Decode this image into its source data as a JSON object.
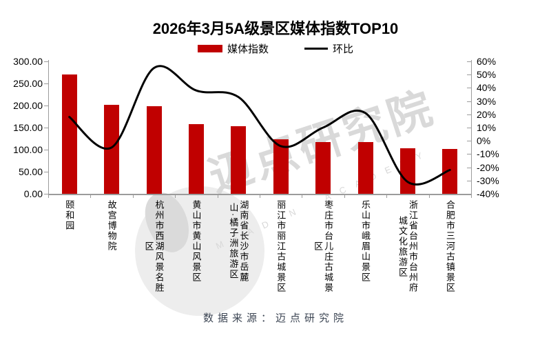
{
  "title": "2026年3月5A级景区媒体指数TOP10",
  "legend": [
    {
      "label": "媒体指数",
      "type": "bar",
      "color": "#C00000"
    },
    {
      "label": "环比",
      "type": "line",
      "color": "#000000"
    }
  ],
  "source": "数据来源：迈点研究院",
  "watermark": {
    "text_cn": "迈点研究院",
    "text_en": "MEADIN ACADEMY"
  },
  "chart_data": {
    "type": "bar+line",
    "title": "2026年3月5A级景区媒体指数TOP10",
    "categories": [
      "颐和园",
      "故宫博物院",
      "杭州市西湖风景名胜区",
      "黄山市黄山风景区",
      "湖南省长沙市岳麓山·橘子洲旅游区",
      "丽江市丽江古城景区",
      "枣庄市台儿庄古城景区",
      "乐山市峨眉山景区",
      "浙江省台州市台州府城文化旅游区",
      "合肥市三河古镇景区"
    ],
    "category_display": [
      "颐和园",
      "故宫博物院",
      "杭州市西湖风景名胜\n区",
      "黄山市黄山风景区",
      "湖南省长沙市岳麓\n山·橘子洲旅游区",
      "丽江市丽江古城景区",
      "枣庄市台儿庄古城景\n区",
      "乐山市峨眉山景区",
      "浙江省台州市台州府\n城文化旅游区",
      "合肥市三河古镇景区"
    ],
    "series": [
      {
        "name": "媒体指数",
        "type": "bar",
        "axis": "left",
        "color": "#C00000",
        "values": [
          270,
          202,
          198,
          158,
          153,
          124,
          118,
          117,
          103,
          102
        ]
      },
      {
        "name": "环比",
        "type": "line",
        "axis": "right",
        "color": "#000000",
        "unit": "%",
        "values": [
          18,
          -5,
          55,
          38,
          33,
          -4,
          10,
          21,
          -31,
          -22
        ]
      }
    ],
    "left_axis": {
      "min": 0,
      "max": 300,
      "step": 50,
      "labels": [
        "300.00",
        "250.00",
        "200.00",
        "150.00",
        "100.00",
        "50.00",
        "0.00"
      ]
    },
    "right_axis": {
      "min": -40,
      "max": 60,
      "step": 10,
      "labels": [
        "60%",
        "50%",
        "40%",
        "30%",
        "20%",
        "10%",
        "0%",
        "-10%",
        "-20%",
        "-30%",
        "-40%"
      ]
    },
    "grid": false,
    "legend_position": "top"
  }
}
